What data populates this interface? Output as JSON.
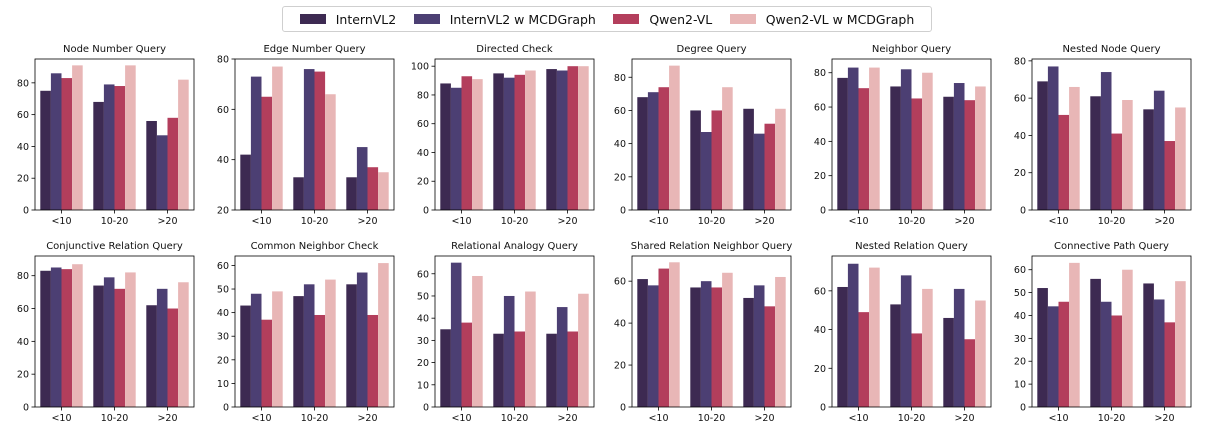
{
  "legend": {
    "items": [
      {
        "label": "InternVL2",
        "color": "#3d2a52"
      },
      {
        "label": "InternVL2 w MCDGraph",
        "color": "#4c3f73"
      },
      {
        "label": "Qwen2-VL",
        "color": "#b33e5c"
      },
      {
        "label": "Qwen2-VL w MCDGraph",
        "color": "#e8b6b6"
      }
    ]
  },
  "chart_data": [
    {
      "type": "bar",
      "title": "Node Number Query",
      "categories": [
        "<10",
        "10-20",
        ">20"
      ],
      "ylim": [
        0,
        95
      ],
      "yticks": [
        0,
        20,
        40,
        60,
        80
      ],
      "series": [
        {
          "name": "InternVL2",
          "values": [
            75,
            68,
            56
          ]
        },
        {
          "name": "InternVL2 w MCDGraph",
          "values": [
            86,
            79,
            47
          ]
        },
        {
          "name": "Qwen2-VL",
          "values": [
            83,
            78,
            58
          ]
        },
        {
          "name": "Qwen2-VL w MCDGraph",
          "values": [
            91,
            91,
            82
          ]
        }
      ]
    },
    {
      "type": "bar",
      "title": "Edge Number Query",
      "categories": [
        "<10",
        "10-20",
        ">20"
      ],
      "ylim": [
        20,
        80
      ],
      "yticks": [
        20,
        40,
        60,
        80
      ],
      "series": [
        {
          "name": "InternVL2",
          "values": [
            42,
            33,
            33
          ]
        },
        {
          "name": "InternVL2 w MCDGraph",
          "values": [
            73,
            76,
            45
          ]
        },
        {
          "name": "Qwen2-VL",
          "values": [
            65,
            75,
            37
          ]
        },
        {
          "name": "Qwen2-VL w MCDGraph",
          "values": [
            77,
            66,
            35
          ]
        }
      ]
    },
    {
      "type": "bar",
      "title": "Directed Check",
      "categories": [
        "<10",
        "10-20",
        ">20"
      ],
      "ylim": [
        0,
        105
      ],
      "yticks": [
        0,
        20,
        40,
        60,
        80,
        100
      ],
      "series": [
        {
          "name": "InternVL2",
          "values": [
            88,
            95,
            98
          ]
        },
        {
          "name": "InternVL2 w MCDGraph",
          "values": [
            85,
            92,
            97
          ]
        },
        {
          "name": "Qwen2-VL",
          "values": [
            93,
            94,
            100
          ]
        },
        {
          "name": "Qwen2-VL w MCDGraph",
          "values": [
            91,
            97,
            100
          ]
        }
      ]
    },
    {
      "type": "bar",
      "title": "Degree Query",
      "categories": [
        "<10",
        "10-20",
        ">20"
      ],
      "ylim": [
        0,
        91
      ],
      "yticks": [
        0,
        20,
        40,
        60,
        80
      ],
      "series": [
        {
          "name": "InternVL2",
          "values": [
            68,
            60,
            61
          ]
        },
        {
          "name": "InternVL2 w MCDGraph",
          "values": [
            71,
            47,
            46
          ]
        },
        {
          "name": "Qwen2-VL",
          "values": [
            74,
            60,
            52
          ]
        },
        {
          "name": "Qwen2-VL w MCDGraph",
          "values": [
            87,
            74,
            61
          ]
        }
      ]
    },
    {
      "type": "bar",
      "title": "Neighbor Query",
      "categories": [
        "<10",
        "10-20",
        ">20"
      ],
      "ylim": [
        0,
        88
      ],
      "yticks": [
        0,
        20,
        40,
        60,
        80
      ],
      "series": [
        {
          "name": "InternVL2",
          "values": [
            77,
            72,
            66
          ]
        },
        {
          "name": "InternVL2 w MCDGraph",
          "values": [
            83,
            82,
            74
          ]
        },
        {
          "name": "Qwen2-VL",
          "values": [
            71,
            65,
            64
          ]
        },
        {
          "name": "Qwen2-VL w MCDGraph",
          "values": [
            83,
            80,
            72
          ]
        }
      ]
    },
    {
      "type": "bar",
      "title": "Nested Node Query",
      "categories": [
        "<10",
        "10-20",
        ">20"
      ],
      "ylim": [
        0,
        81
      ],
      "yticks": [
        0,
        20,
        40,
        60,
        80
      ],
      "series": [
        {
          "name": "InternVL2",
          "values": [
            69,
            61,
            54
          ]
        },
        {
          "name": "InternVL2 w MCDGraph",
          "values": [
            77,
            74,
            64
          ]
        },
        {
          "name": "Qwen2-VL",
          "values": [
            51,
            41,
            37
          ]
        },
        {
          "name": "Qwen2-VL w MCDGraph",
          "values": [
            66,
            59,
            55
          ]
        }
      ]
    },
    {
      "type": "bar",
      "title": "Conjunctive Relation Query",
      "categories": [
        "<10",
        "10-20",
        ">20"
      ],
      "ylim": [
        0,
        92
      ],
      "yticks": [
        0,
        20,
        40,
        60,
        80
      ],
      "series": [
        {
          "name": "InternVL2",
          "values": [
            83,
            74,
            62
          ]
        },
        {
          "name": "InternVL2 w MCDGraph",
          "values": [
            85,
            79,
            72
          ]
        },
        {
          "name": "Qwen2-VL",
          "values": [
            84,
            72,
            60
          ]
        },
        {
          "name": "Qwen2-VL w MCDGraph",
          "values": [
            87,
            82,
            76
          ]
        }
      ]
    },
    {
      "type": "bar",
      "title": "Common Neighbor Check",
      "categories": [
        "<10",
        "10-20",
        ">20"
      ],
      "ylim": [
        0,
        64
      ],
      "yticks": [
        0,
        10,
        20,
        30,
        40,
        50,
        60
      ],
      "series": [
        {
          "name": "InternVL2",
          "values": [
            43,
            47,
            52
          ]
        },
        {
          "name": "InternVL2 w MCDGraph",
          "values": [
            48,
            52,
            57
          ]
        },
        {
          "name": "Qwen2-VL",
          "values": [
            37,
            39,
            39
          ]
        },
        {
          "name": "Qwen2-VL w MCDGraph",
          "values": [
            49,
            54,
            61
          ]
        }
      ]
    },
    {
      "type": "bar",
      "title": "Relational Analogy Query",
      "categories": [
        "<10",
        "10-20",
        ">20"
      ],
      "ylim": [
        0,
        68
      ],
      "yticks": [
        0,
        10,
        20,
        30,
        40,
        50,
        60
      ],
      "series": [
        {
          "name": "InternVL2",
          "values": [
            35,
            33,
            33
          ]
        },
        {
          "name": "InternVL2 w MCDGraph",
          "values": [
            65,
            50,
            45
          ]
        },
        {
          "name": "Qwen2-VL",
          "values": [
            38,
            34,
            34
          ]
        },
        {
          "name": "Qwen2-VL w MCDGraph",
          "values": [
            59,
            52,
            51
          ]
        }
      ]
    },
    {
      "type": "bar",
      "title": "Shared Relation Neighbor Query",
      "categories": [
        "<10",
        "10-20",
        ">20"
      ],
      "ylim": [
        0,
        72
      ],
      "yticks": [
        0,
        20,
        40,
        60
      ],
      "series": [
        {
          "name": "InternVL2",
          "values": [
            61,
            57,
            52
          ]
        },
        {
          "name": "InternVL2 w MCDGraph",
          "values": [
            58,
            60,
            58
          ]
        },
        {
          "name": "Qwen2-VL",
          "values": [
            66,
            57,
            48
          ]
        },
        {
          "name": "Qwen2-VL w MCDGraph",
          "values": [
            69,
            64,
            62
          ]
        }
      ]
    },
    {
      "type": "bar",
      "title": "Nested Relation Query",
      "categories": [
        "<10",
        "10-20",
        ">20"
      ],
      "ylim": [
        0,
        78
      ],
      "yticks": [
        0,
        20,
        40,
        60
      ],
      "series": [
        {
          "name": "InternVL2",
          "values": [
            62,
            53,
            46
          ]
        },
        {
          "name": "InternVL2 w MCDGraph",
          "values": [
            74,
            68,
            61
          ]
        },
        {
          "name": "Qwen2-VL",
          "values": [
            49,
            38,
            35
          ]
        },
        {
          "name": "Qwen2-VL w MCDGraph",
          "values": [
            72,
            61,
            55
          ]
        }
      ]
    },
    {
      "type": "bar",
      "title": "Connective Path Query",
      "categories": [
        "<10",
        "10-20",
        ">20"
      ],
      "ylim": [
        0,
        66
      ],
      "yticks": [
        0,
        10,
        20,
        30,
        40,
        50,
        60
      ],
      "series": [
        {
          "name": "InternVL2",
          "values": [
            52,
            56,
            54
          ]
        },
        {
          "name": "InternVL2 w MCDGraph",
          "values": [
            44,
            46,
            47
          ]
        },
        {
          "name": "Qwen2-VL",
          "values": [
            46,
            40,
            37
          ]
        },
        {
          "name": "Qwen2-VL w MCDGraph",
          "values": [
            63,
            60,
            55
          ]
        }
      ]
    }
  ]
}
